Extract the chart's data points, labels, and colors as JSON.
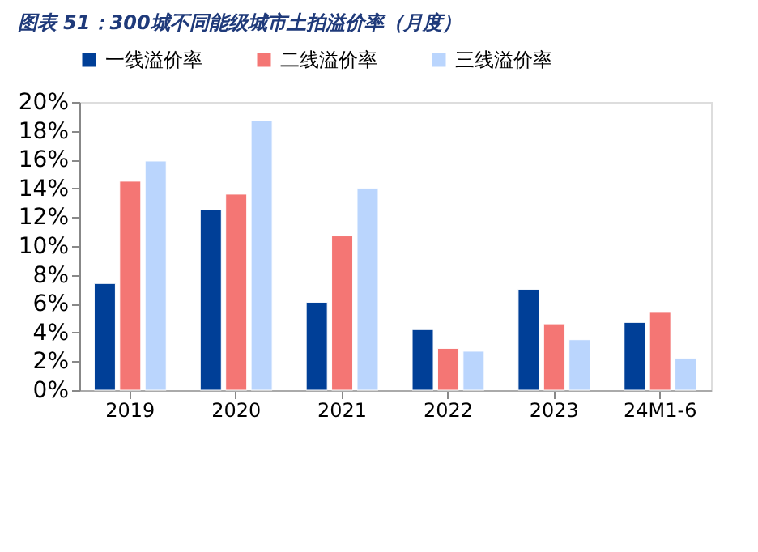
{
  "chart_data": {
    "type": "bar",
    "title": "图表 51：300城不同能级城市土拍溢价率（月度）",
    "categories": [
      "2019",
      "2020",
      "2021",
      "2022",
      "2023",
      "24M1-6"
    ],
    "series": [
      {
        "name": "一线溢价率",
        "color": "#003f97",
        "values": [
          7.4,
          12.5,
          6.1,
          4.2,
          7.0,
          4.7
        ]
      },
      {
        "name": "二线溢价率",
        "color": "#f47674",
        "values": [
          14.5,
          13.6,
          10.7,
          2.9,
          4.6,
          5.4
        ]
      },
      {
        "name": "三线溢价率",
        "color": "#bad5fd",
        "values": [
          15.9,
          18.7,
          14.0,
          2.7,
          3.5,
          2.2
        ]
      }
    ],
    "ylim": [
      0,
      20
    ],
    "yticks": [
      {
        "value": 0,
        "label": "0%"
      },
      {
        "value": 2,
        "label": "2%"
      },
      {
        "value": 4,
        "label": "4%"
      },
      {
        "value": 6,
        "label": "6%"
      },
      {
        "value": 8,
        "label": "8%"
      },
      {
        "value": 10,
        "label": "10%"
      },
      {
        "value": 12,
        "label": "12%"
      },
      {
        "value": 14,
        "label": "14%"
      },
      {
        "value": 16,
        "label": "16%"
      },
      {
        "value": 18,
        "label": "18%"
      },
      {
        "value": 20,
        "label": "20%"
      }
    ],
    "grid": false,
    "legend": "top"
  }
}
